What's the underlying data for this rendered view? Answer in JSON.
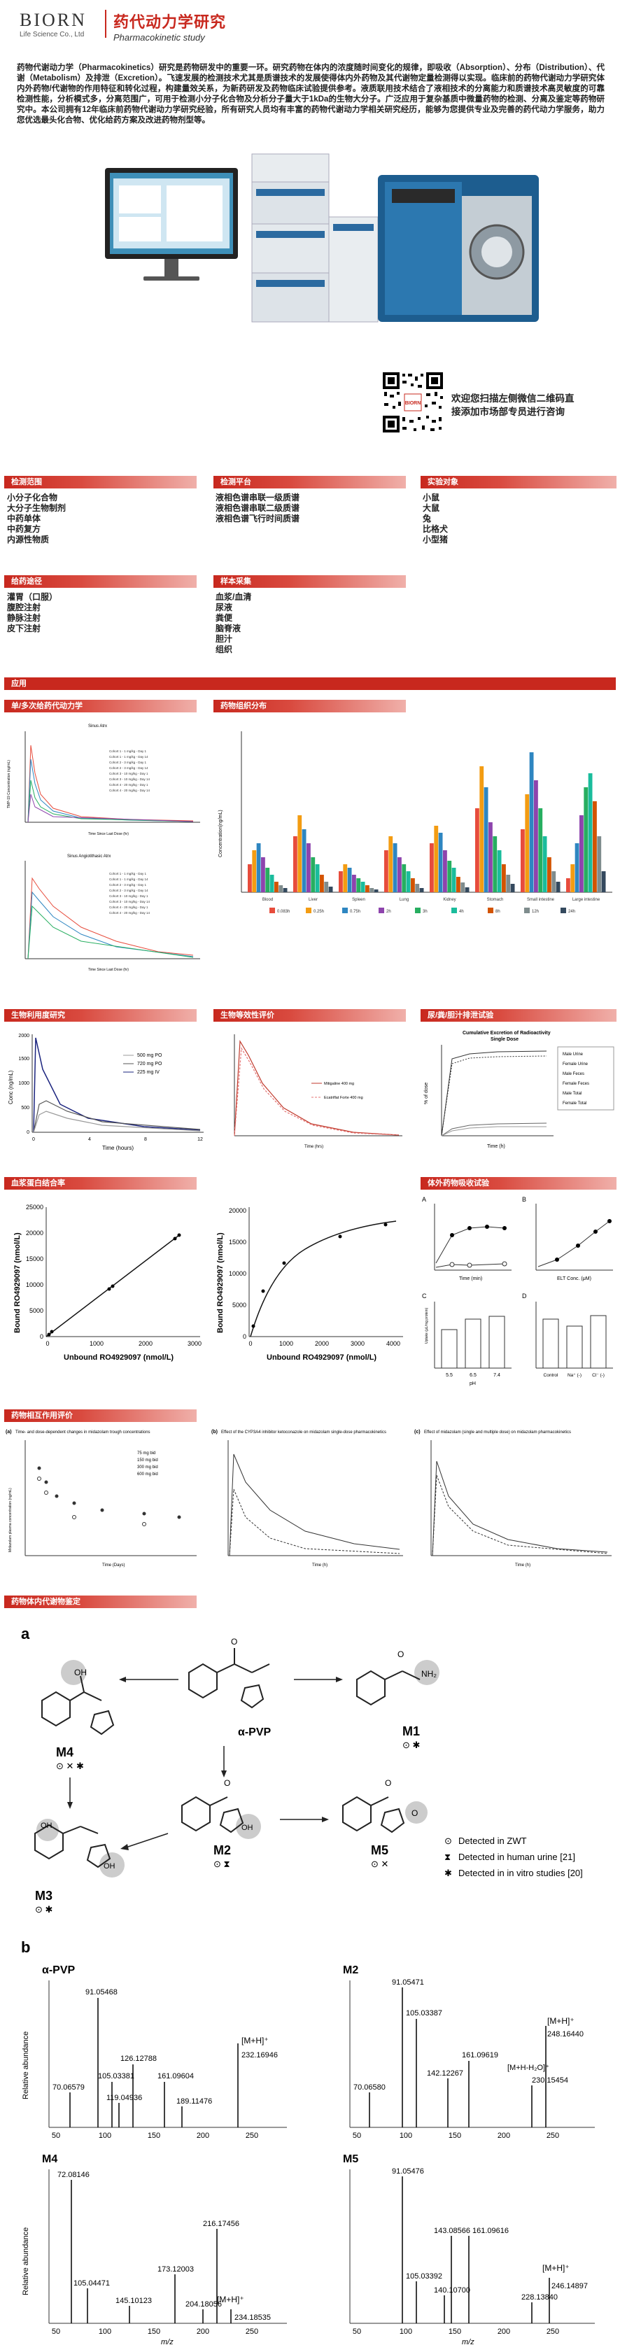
{
  "header": {
    "logo_text": "BIORN",
    "logo_sub": "Life Science Co., Ltd",
    "title_cn": "药代动力学研究",
    "title_en": "Pharmacokinetic study"
  },
  "intro": "药物代谢动力学（Pharmacokinetics）研究是药物研发中的重要一环。研究药物在体内的浓度随时间变化的规律，即吸收（Absorption）、分布（Distribution）、代谢（Metabolism）及排泄（Excretion）。飞速发展的检测技术尤其是质谱技术的发展使得体内外药物及其代谢物定量检测得以实现。临床前的药物代谢动力学研究体内外药物/代谢物的作用特征和转化过程，构建量效关系，为新药研发及药物临床试验提供参考。液质联用技术结合了液相技术的分离能力和质谱技术高灵敏度的可靠检测性能，分析模式多，分离范围广，可用于检测小分子化合物及分析分子量大于1kDa的生物大分子。广泛应用于复杂基质中微量药物的检测、分离及鉴定等药物研究中。本公司拥有12年临床前药物代谢动力学研究经验，所有研究人员均有丰富的药物代谢动力学相关研究经历，能够为您提供专业及完善的药代动力学服务，助力您优选最头化合物、优化给药方案及改进药物剂型等。",
  "qr": {
    "text_line1": "欢迎您扫描左侧微信二维码直",
    "text_line2": "接添加市场部专员进行咨询",
    "logo_label": "BIORN"
  },
  "sections": {
    "detect_range": {
      "title": "检测范围",
      "items": [
        "小分子化合物",
        "大分子生物制剂",
        "中药单体",
        "中药复方",
        "内源性物质"
      ]
    },
    "detect_platform": {
      "title": "检测平台",
      "items": [
        "液相色谱串联一级质谱",
        "液相色谱串联二级质谱",
        "液相色谱飞行时间质谱"
      ]
    },
    "animals": {
      "title": "实验对象",
      "items": [
        "小鼠",
        "大鼠",
        "兔",
        "比格犬",
        "小型猪"
      ]
    },
    "routes": {
      "title": "给药途径",
      "items": [
        "灌胃（口服）",
        "腹腔注射",
        "静脉注射",
        "皮下注射"
      ]
    },
    "samples": {
      "title": "样本采集",
      "items": [
        "血浆/血清",
        "尿液",
        "粪便",
        "脑脊液",
        "胆汁",
        "组织"
      ]
    }
  },
  "apps": {
    "title": "应用",
    "pk": {
      "title": "单/多次给药代动力学",
      "top_title": "Sinus Atrx",
      "bottom_title": "Sinus Angiotithasic Atrx",
      "xlabel": "Time Since Last Dose (hr)",
      "ylabel": "TMP-19 Concentration (ng/mL)",
      "legend": [
        "Cohort 1 - 1 mg/kg - Day 1",
        "Cohort 1 - 1 mg/kg - Day 14",
        "Cohort 2 - 3 mg/kg - Day 1",
        "Cohort 2 - 3 mg/kg - Day 14",
        "Cohort 3 - 10 mg/kg - Day 1",
        "Cohort 3 - 10 mg/kg - Day 14",
        "Cohort 4 - 20 mg/kg - Day 1",
        "Cohort 4 - 20 mg/kg - Day 14"
      ]
    },
    "tissue": {
      "title": "药物组织分布",
      "ylabel": "Concentration(ng/mL)",
      "categories": [
        "Blood",
        "Liver",
        "Spleen",
        "Lung",
        "Kidney",
        "Stomach",
        "Small intestine",
        "Large intestine"
      ],
      "legend": [
        "0.083h",
        "0.25h",
        "0.75h",
        "2h",
        "3h",
        "4h",
        "8h",
        "12h",
        "24h"
      ],
      "colors": [
        "#e74c3c",
        "#f39c12",
        "#2e86c1",
        "#8e44ad",
        "#27ae60",
        "#1abc9c",
        "#d35400",
        "#7f8c8d",
        "#34495e"
      ]
    },
    "bio": {
      "title": "生物利用度研究",
      "ylabel": "Conc (ng/mL)",
      "xlabel": "Time (hours)",
      "legend": [
        "500 mg PO",
        "720 mg PO",
        "225 mg IV"
      ],
      "yticks": [
        "0",
        "500",
        "1000",
        "1500",
        "2000"
      ],
      "xticks": [
        "0",
        "4",
        "8",
        "12"
      ]
    },
    "bioeq": {
      "title": "生物等效性评价",
      "legend": [
        "Mitigaline 400 mg",
        "Ecatriflat Forte 400 mg"
      ],
      "xlabel": "Time (hrs)"
    },
    "excr": {
      "title": "尿/粪/胆汁排泄试验",
      "chart_title": "Cumulative Excretion of Radioactivity",
      "chart_sub": "Single Dose",
      "ylabel": "% of dose",
      "xlabel": "Time (h)",
      "legend": [
        "Male Urine",
        "Female Urine",
        "Male Feces",
        "Female Feces",
        "Male Total",
        "Female Total"
      ]
    },
    "ppb": {
      "title": "血浆蛋白结合率",
      "ylabel": "Bound RO4929097 (nmol/L)",
      "xlabel": "Unbound RO4929097 (nmol/L)",
      "left_yticks": [
        "0",
        "5000",
        "10000",
        "15000",
        "20000",
        "25000"
      ],
      "left_xticks": [
        "0",
        "1000",
        "2000",
        "3000"
      ],
      "right_yticks": [
        "0",
        "5000",
        "10000",
        "15000",
        "20000"
      ],
      "right_xticks": [
        "0",
        "1000",
        "2000",
        "3000",
        "4000"
      ]
    },
    "absorb": {
      "title": "体外药物吸收试验",
      "labels": [
        "A",
        "B",
        "C",
        "D"
      ],
      "a_xlabel": "Time (min)",
      "b_xlabel": "ELT Conc. (μM)",
      "c_xlabel": "pH",
      "d_labels": [
        "Control",
        "Na⁺ (-)",
        "Cl⁻ (-)"
      ],
      "c_labels": [
        "5.5",
        "6.5",
        "7.4"
      ],
      "ylabel": "Uptake (μL/mg protein)"
    },
    "ddi": {
      "title": "药物相互作用评价",
      "panel_a": "Time- and dose-dependent changes in midazolam trough concentrations",
      "panel_b": "Effect of the CYP3A4 inhibitor ketoconazole on midazolam single-dose pharmacokinetics",
      "panel_c": "Effect of midazolam (single and multiple dose) on midazolam pharmacokinetics",
      "labels": [
        "(a)",
        "(b)",
        "(c)"
      ],
      "a_legend": [
        "75 mg bid",
        "150 mg bid",
        "300 mg bid",
        "600 mg bid"
      ],
      "a_xlabel": "Time (Days)",
      "b_xlabel": "Time (h)",
      "c_xlabel": "Time (h)",
      "ylabel": "Midazolam plasma concentration (ng/mL)"
    },
    "metab": {
      "title": "药物体内代谢物鉴定",
      "label_a": "a",
      "label_b": "b",
      "compounds": [
        "M4",
        "α-PVP",
        "M1",
        "M3",
        "M2",
        "M5"
      ],
      "legend": [
        "Detected in ZWT",
        "Detected in human urine [21]",
        "Detected in in vitro studies [20]"
      ],
      "spectra": [
        {
          "name": "α-PVP",
          "peaks": [
            "91.05468",
            "126.12788",
            "105.03381",
            "161.09604",
            "70.06579",
            "119.04936",
            "189.11476",
            "232.16946"
          ],
          "ion": "[M+H]⁺"
        },
        {
          "name": "M2",
          "peaks": [
            "91.05471",
            "105.03387",
            "161.09619",
            "142.12267",
            "70.06580",
            "248.16440",
            "230.15454"
          ],
          "ion": "[M+H]⁺",
          "ion2": "[M+H-H₂O]⁺"
        },
        {
          "name": "M4",
          "peaks": [
            "72.08146",
            "216.17456",
            "173.12003",
            "105.04471",
            "145.10123",
            "204.18056",
            "234.18535"
          ],
          "ion": "[M+H]⁺"
        },
        {
          "name": "M5",
          "peaks": [
            "91.05476",
            "143.08566",
            "161.09616",
            "105.03392",
            "140.10700",
            "228.13840",
            "246.14897"
          ],
          "ion": "[M+H]⁺"
        }
      ],
      "xlabel": "m/z",
      "ylabel": "Relative abundance",
      "xticks": [
        "50",
        "100",
        "150",
        "200",
        "250"
      ]
    }
  }
}
